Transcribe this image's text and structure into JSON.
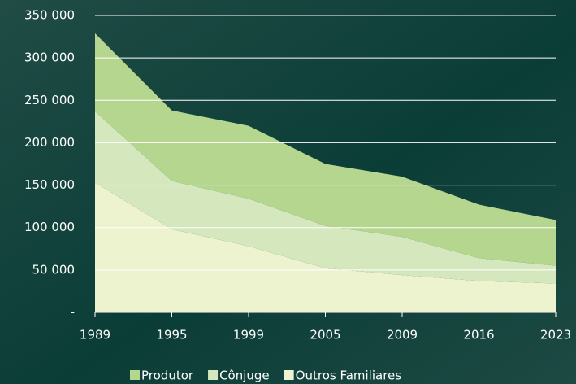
{
  "chart_data": {
    "type": "stacked_area",
    "categories": [
      "1989",
      "1995",
      "1999",
      "2005",
      "2009",
      "2016",
      "2023"
    ],
    "series": [
      {
        "name": "Outros Familiares",
        "color": "#eef3cf",
        "values": [
          153000,
          98000,
          78000,
          52000,
          44000,
          37000,
          34000
        ]
      },
      {
        "name": "Cônjuge",
        "color": "#d5e7bd",
        "values": [
          84000,
          57000,
          56000,
          50000,
          45000,
          27000,
          21000
        ]
      },
      {
        "name": "Produtor",
        "color": "#b5d68f",
        "values": [
          92000,
          83000,
          86000,
          73000,
          71000,
          63000,
          54000
        ]
      }
    ],
    "legend_order": [
      "Produtor",
      "Cônjuge",
      "Outros Familiares"
    ],
    "ylim": [
      0,
      350000
    ],
    "yticks": [
      {
        "value": 0,
        "label": "-"
      },
      {
        "value": 50000,
        "label": "50 000"
      },
      {
        "value": 100000,
        "label": "100 000"
      },
      {
        "value": 150000,
        "label": "150 000"
      },
      {
        "value": 200000,
        "label": "200 000"
      },
      {
        "value": 250000,
        "label": "250 000"
      },
      {
        "value": 300000,
        "label": "300 000"
      },
      {
        "value": 350000,
        "label": "350 000"
      }
    ],
    "grid": true
  }
}
